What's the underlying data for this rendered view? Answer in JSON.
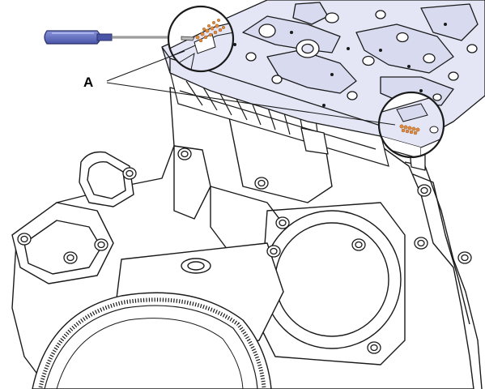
{
  "figure": {
    "callout_label": "A",
    "colors": {
      "line": "#1a1a1a",
      "plate_fill": "#e4e6f6",
      "sealant": "#e08a3c",
      "handle": "#6d78c8",
      "handle_dark": "#3f4a9a",
      "background": "#ffffff"
    },
    "icons": [
      "screwdriver-icon",
      "sealant-bead-icon"
    ]
  }
}
